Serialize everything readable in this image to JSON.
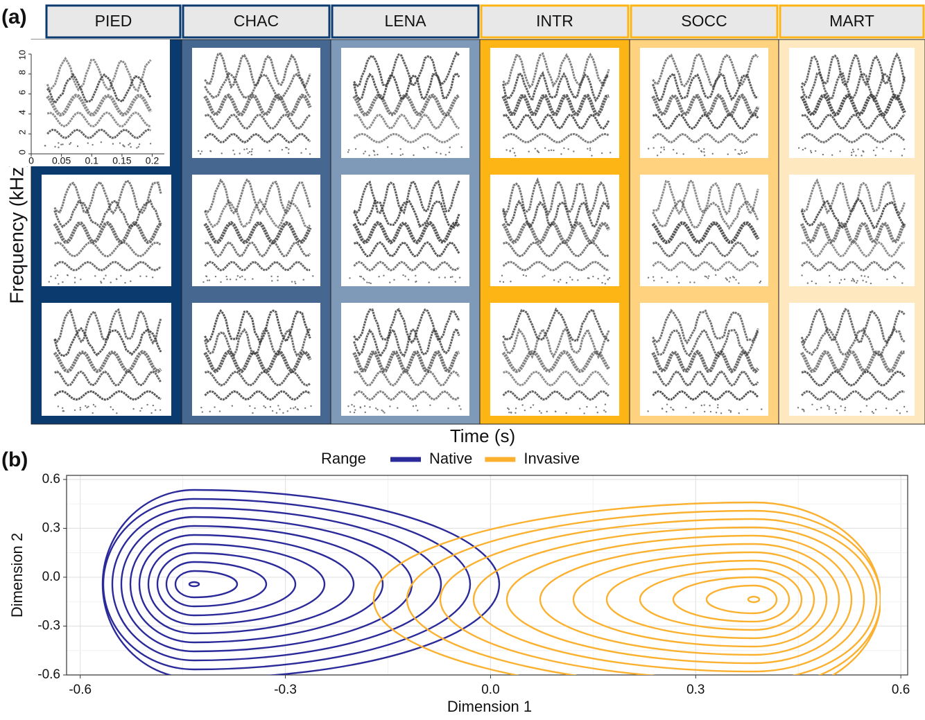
{
  "panel_a": {
    "label": "(a)",
    "y_label": "Frequency (kHz)",
    "x_label": "Time (s)",
    "columns": [
      {
        "name": "PIED",
        "color": "#0b3a6e",
        "border": "#0b3a6e"
      },
      {
        "name": "CHAC",
        "color": "#46678f",
        "border": "#0b3a6e"
      },
      {
        "name": "LENA",
        "color": "#7f9ab8",
        "border": "#0b3a6e"
      },
      {
        "name": "INTR",
        "color": "#fdb515",
        "border": "#fdb515"
      },
      {
        "name": "SOCC",
        "color": "#fed27e",
        "border": "#fdb515"
      },
      {
        "name": "MART",
        "color": "#fde8bf",
        "border": "#fdb515"
      }
    ],
    "inset": {
      "xlim": [
        0,
        0.22
      ],
      "xticks": [
        0,
        0.05,
        0.1,
        0.15,
        0.2
      ],
      "ylim": [
        0,
        10
      ],
      "yticks": [
        0,
        2,
        4,
        6,
        8,
        10
      ]
    }
  },
  "panel_b": {
    "label": "(b)",
    "legend_title": "Range",
    "legend": [
      {
        "name": "Native",
        "color": "#2b2a9a"
      },
      {
        "name": "Invasive",
        "color": "#fbb12f"
      }
    ],
    "x_label": "Dimension 1",
    "y_label": "Dimension 2",
    "xlim": [
      -0.62,
      0.61
    ],
    "ylim": [
      -0.6,
      0.625
    ],
    "xticks": [
      -0.6,
      -0.3,
      {
        "value": 0,
        "label": "0.0"
      },
      0.3,
      0.6
    ],
    "yticks": [
      -0.6,
      -0.3,
      {
        "value": 0,
        "label": "0.0"
      },
      0.3,
      0.6
    ],
    "grid": true
  }
}
